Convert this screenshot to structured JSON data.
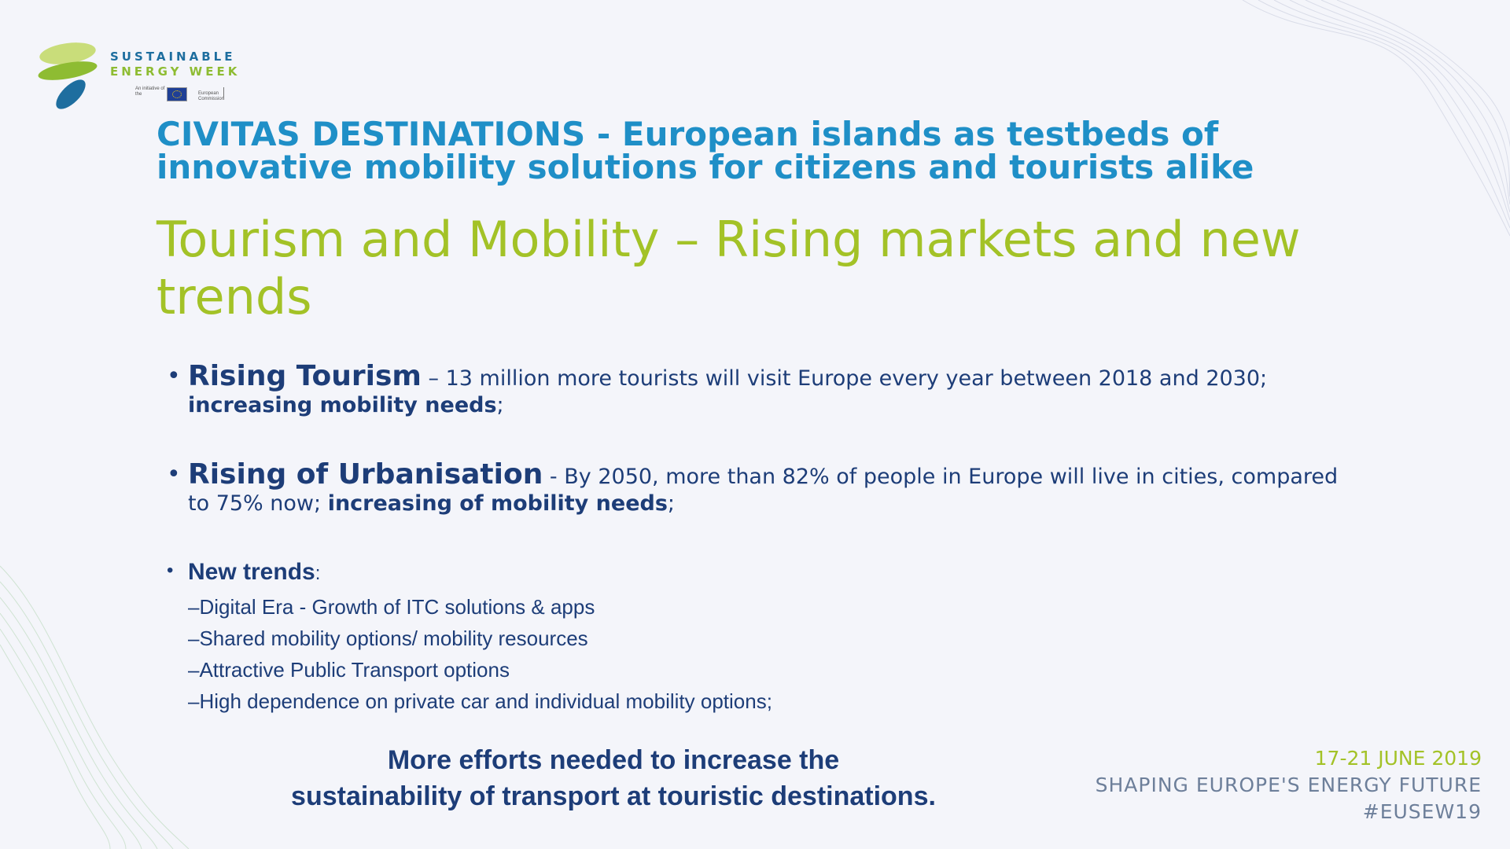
{
  "logo": {
    "line1": "SUSTAINABLE",
    "line2": "ENERGY WEEK",
    "initiative": "An initiative of the",
    "commission": "European Commission"
  },
  "header": {
    "line1": "CIVITAS DESTINATIONS - European islands as testbeds of",
    "line2": "innovative mobility solutions for citizens and tourists alike"
  },
  "subtitle": {
    "line1": "Tourism and Mobility – Rising markets and new",
    "line2": "trends"
  },
  "bullets": [
    {
      "head": "Rising Tourism",
      "body": " – 13 million more tourists will visit Europe every year between 2018 and 2030;",
      "strong": "increasing mobility needs",
      "tail": ";"
    },
    {
      "head": "Rising of Urbanisation",
      "body": " - By 2050, more than 82% of people in Europe will live in cities, compared to 75% now; ",
      "strong": "increasing of mobility needs",
      "tail": ";"
    }
  ],
  "trends": {
    "head": "New trends",
    "colon": ":",
    "items": [
      "–Digital Era - Growth of ITC solutions & apps",
      "–Shared mobility options/ mobility resources",
      "–Attractive Public Transport options",
      "–High dependence on private car and individual mobility options;"
    ]
  },
  "conclusion": {
    "line1": "More efforts needed to increase the",
    "line2": "sustainability of transport at touristic destinations."
  },
  "event": {
    "date": "17-21 JUNE 2019",
    "slogan": "SHAPING EUROPE'S ENERGY FUTURE",
    "hashtag": "#EUSEW19"
  },
  "colors": {
    "title_blue": "#1f8fc7",
    "subtitle_green": "#a3c227",
    "body_navy": "#1d3d78",
    "event_grey": "#6d7f9a"
  }
}
